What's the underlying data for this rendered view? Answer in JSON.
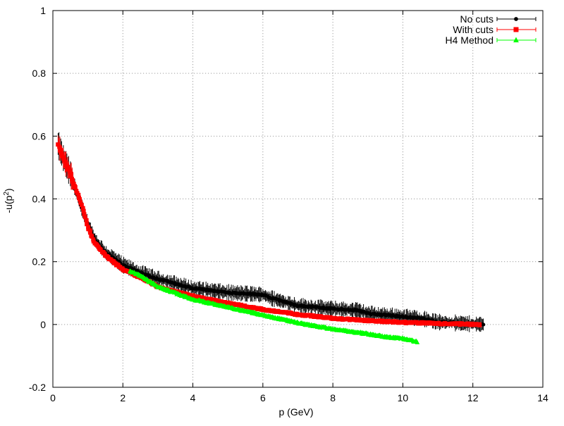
{
  "chart_data": {
    "type": "scatter",
    "xlabel": "p (GeV)",
    "ylabel_base": "-u(p",
    "ylabel_sup": "2",
    "ylabel_close": ")",
    "xlim": [
      0,
      14
    ],
    "ylim": [
      -0.2,
      1
    ],
    "x_ticks": [
      0,
      2,
      4,
      6,
      8,
      10,
      12,
      14
    ],
    "y_ticks": [
      -0.2,
      0,
      0.2,
      0.4,
      0.6,
      0.8,
      1
    ],
    "x_tick_labels": [
      "0",
      "2",
      "4",
      "6",
      "8",
      "10",
      "12",
      "14"
    ],
    "y_tick_labels": [
      "-0.2",
      "0",
      "0.2",
      "0.4",
      "0.6",
      "0.8",
      "1"
    ],
    "grid": true,
    "legend_position": "top-right",
    "series": [
      {
        "name": "No cuts",
        "color": "#000000",
        "marker": "circle",
        "curve": [
          [
            0.15,
            0.575
          ],
          [
            0.3,
            0.53
          ],
          [
            0.5,
            0.48
          ],
          [
            0.8,
            0.38
          ],
          [
            1.0,
            0.32
          ],
          [
            1.2,
            0.27
          ],
          [
            1.5,
            0.23
          ],
          [
            2.0,
            0.19
          ],
          [
            2.5,
            0.165
          ],
          [
            3.0,
            0.145
          ],
          [
            4.0,
            0.115
          ],
          [
            5.0,
            0.102
          ],
          [
            6.0,
            0.095
          ],
          [
            6.2,
            0.085
          ],
          [
            7.0,
            0.06
          ],
          [
            8.0,
            0.05
          ],
          [
            8.7,
            0.045
          ],
          [
            9.0,
            0.035
          ],
          [
            10.0,
            0.025
          ],
          [
            10.6,
            0.018
          ],
          [
            11.0,
            0.008
          ],
          [
            12.3,
            0.0
          ]
        ],
        "x_range": [
          0.15,
          12.3
        ],
        "error_spread": 0.018
      },
      {
        "name": "With cuts",
        "color": "#ff0000",
        "marker": "square",
        "curve": [
          [
            0.15,
            0.575
          ],
          [
            0.3,
            0.53
          ],
          [
            0.5,
            0.48
          ],
          [
            0.8,
            0.39
          ],
          [
            1.0,
            0.31
          ],
          [
            1.2,
            0.26
          ],
          [
            1.5,
            0.22
          ],
          [
            2.0,
            0.175
          ],
          [
            2.5,
            0.15
          ],
          [
            3.0,
            0.12
          ],
          [
            4.0,
            0.09
          ],
          [
            5.0,
            0.068
          ],
          [
            6.0,
            0.048
          ],
          [
            7.0,
            0.032
          ],
          [
            8.0,
            0.02
          ],
          [
            9.0,
            0.012
          ],
          [
            10.0,
            0.007
          ],
          [
            11.0,
            0.003
          ],
          [
            12.2,
            0.0
          ]
        ],
        "x_range": [
          0.15,
          12.2
        ],
        "error_spread": 0.004
      },
      {
        "name": "H4 Method",
        "color": "#00ff00",
        "marker": "triangle",
        "curve": [
          [
            2.2,
            0.17
          ],
          [
            2.5,
            0.155
          ],
          [
            3.0,
            0.12
          ],
          [
            4.0,
            0.08
          ],
          [
            5.0,
            0.055
          ],
          [
            6.0,
            0.03
          ],
          [
            7.0,
            0.005
          ],
          [
            8.0,
            -0.015
          ],
          [
            9.0,
            -0.03
          ],
          [
            9.5,
            -0.04
          ],
          [
            10.0,
            -0.045
          ],
          [
            10.4,
            -0.055
          ]
        ],
        "x_range": [
          2.2,
          10.4
        ],
        "error_spread": 0.006
      }
    ]
  }
}
